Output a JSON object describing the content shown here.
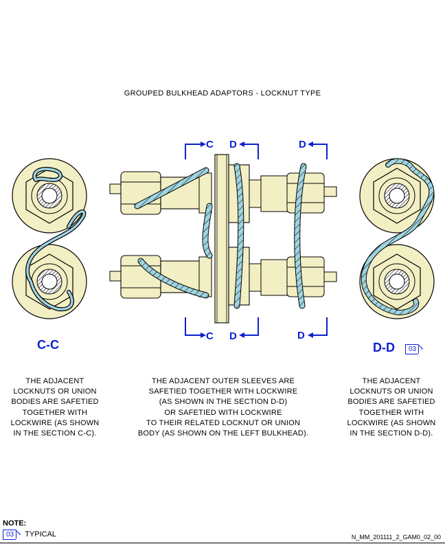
{
  "title": "GROUPED BULKHEAD ADAPTORS - LOCKNUT TYPE",
  "section_cc_label": "C-C",
  "section_dd_label": "D-D",
  "section_dd_ref": "03",
  "cut_letters": {
    "c_top": "C",
    "d_top": "D",
    "d_right_top": "D",
    "c_bottom": "C",
    "d_bottom": "D",
    "d_right_bottom": "D"
  },
  "notes": {
    "left": "THE ADJACENT\nLOCKNUTS OR UNION\nBODIES ARE SAFETIED\nTOGETHER WITH\nLOCKWIRE (AS SHOWN\nIN THE SECTION C-C).",
    "center": "THE ADJACENT OUTER SLEEVES ARE\nSAFETIED TOGETHER WITH LOCKWIRE\n(AS SHOWN IN THE SECTION D-D)\nOR SAFETIED WITH LOCKWIRE\nTO THEIR RELATED LOCKNUT OR UNION\nBODY (AS SHOWN ON THE LEFT BULKHEAD).",
    "right": "THE ADJACENT\nLOCKNUTS OR UNION\nBODIES ARE SAFETIED\nTOGETHER WITH\nLOCKWIRE (AS SHOWN\nIN THE SECTION D-D)."
  },
  "legend": {
    "heading": "NOTE:",
    "ref": "03",
    "text": "TYPICAL"
  },
  "drawing_id": "N_MM_201111_2_GAM0_02_00",
  "colors": {
    "part_fill": "#f3efc4",
    "wire": "#9fd4e0",
    "blue": "#0a1fd0",
    "outline": "#000000"
  }
}
